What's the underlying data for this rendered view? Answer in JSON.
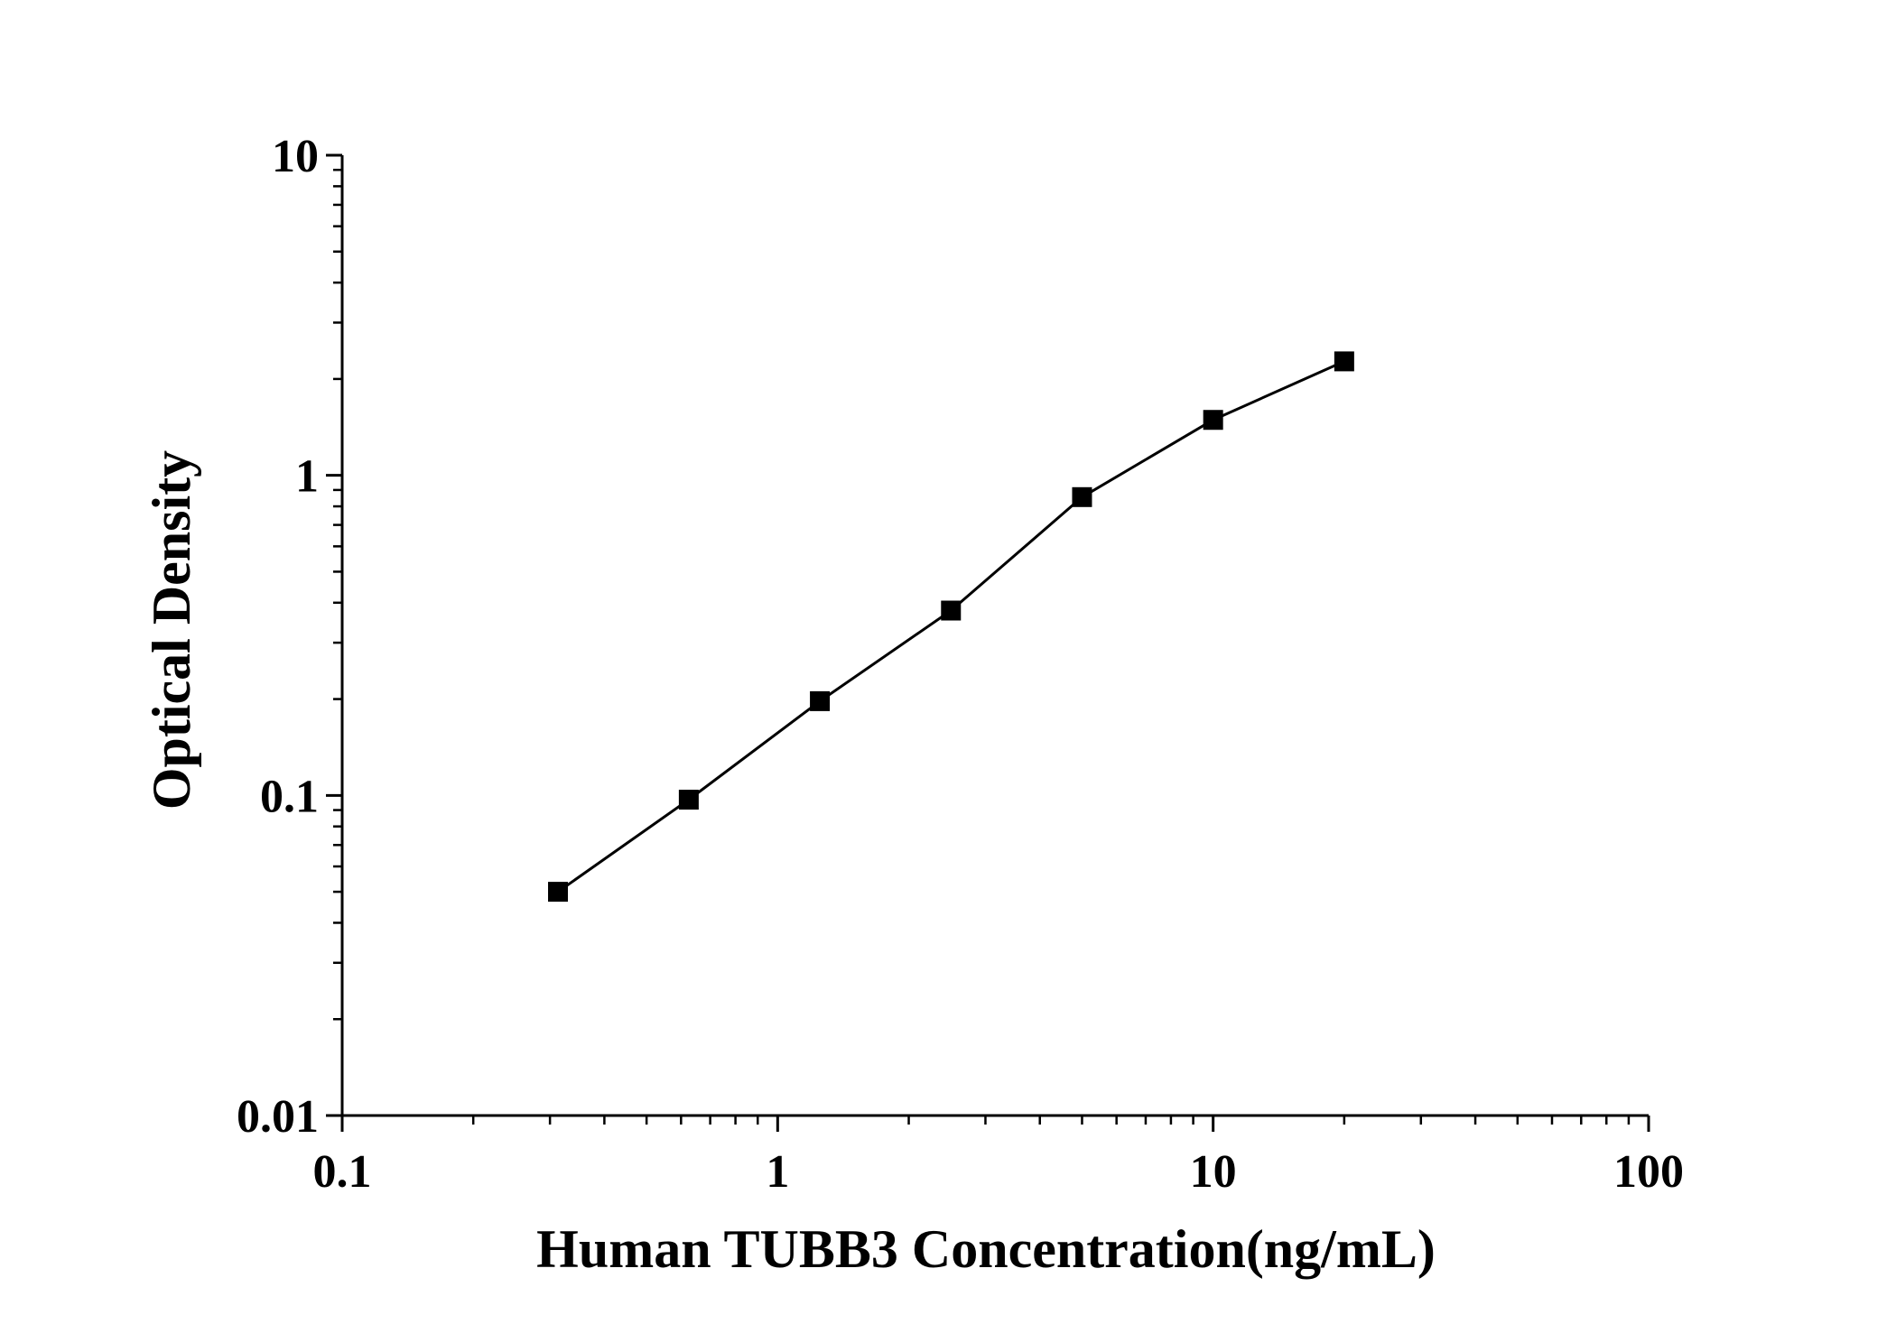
{
  "chart_data": {
    "type": "line",
    "title": "",
    "xlabel": "Human TUBB3 Concentration(ng/mL)",
    "ylabel": "Optical Density",
    "xscale": "log",
    "yscale": "log",
    "xlim": [
      0.1,
      100
    ],
    "ylim": [
      0.01,
      10
    ],
    "xticks": [
      {
        "value": 0.1,
        "label": "0.1"
      },
      {
        "value": 1,
        "label": "1"
      },
      {
        "value": 10,
        "label": "10"
      },
      {
        "value": 100,
        "label": "100"
      }
    ],
    "yticks": [
      {
        "value": 0.01,
        "label": "0.01"
      },
      {
        "value": 0.1,
        "label": "0.1"
      },
      {
        "value": 1,
        "label": "1"
      },
      {
        "value": 10,
        "label": "10"
      }
    ],
    "grid": false,
    "legend": "none",
    "marker": "square",
    "color": "#000000",
    "series": [
      {
        "x": [
          0.313,
          0.625,
          1.25,
          2.5,
          5,
          10,
          20
        ],
        "y": [
          0.05,
          0.097,
          0.197,
          0.378,
          0.855,
          1.49,
          2.27
        ]
      }
    ]
  }
}
